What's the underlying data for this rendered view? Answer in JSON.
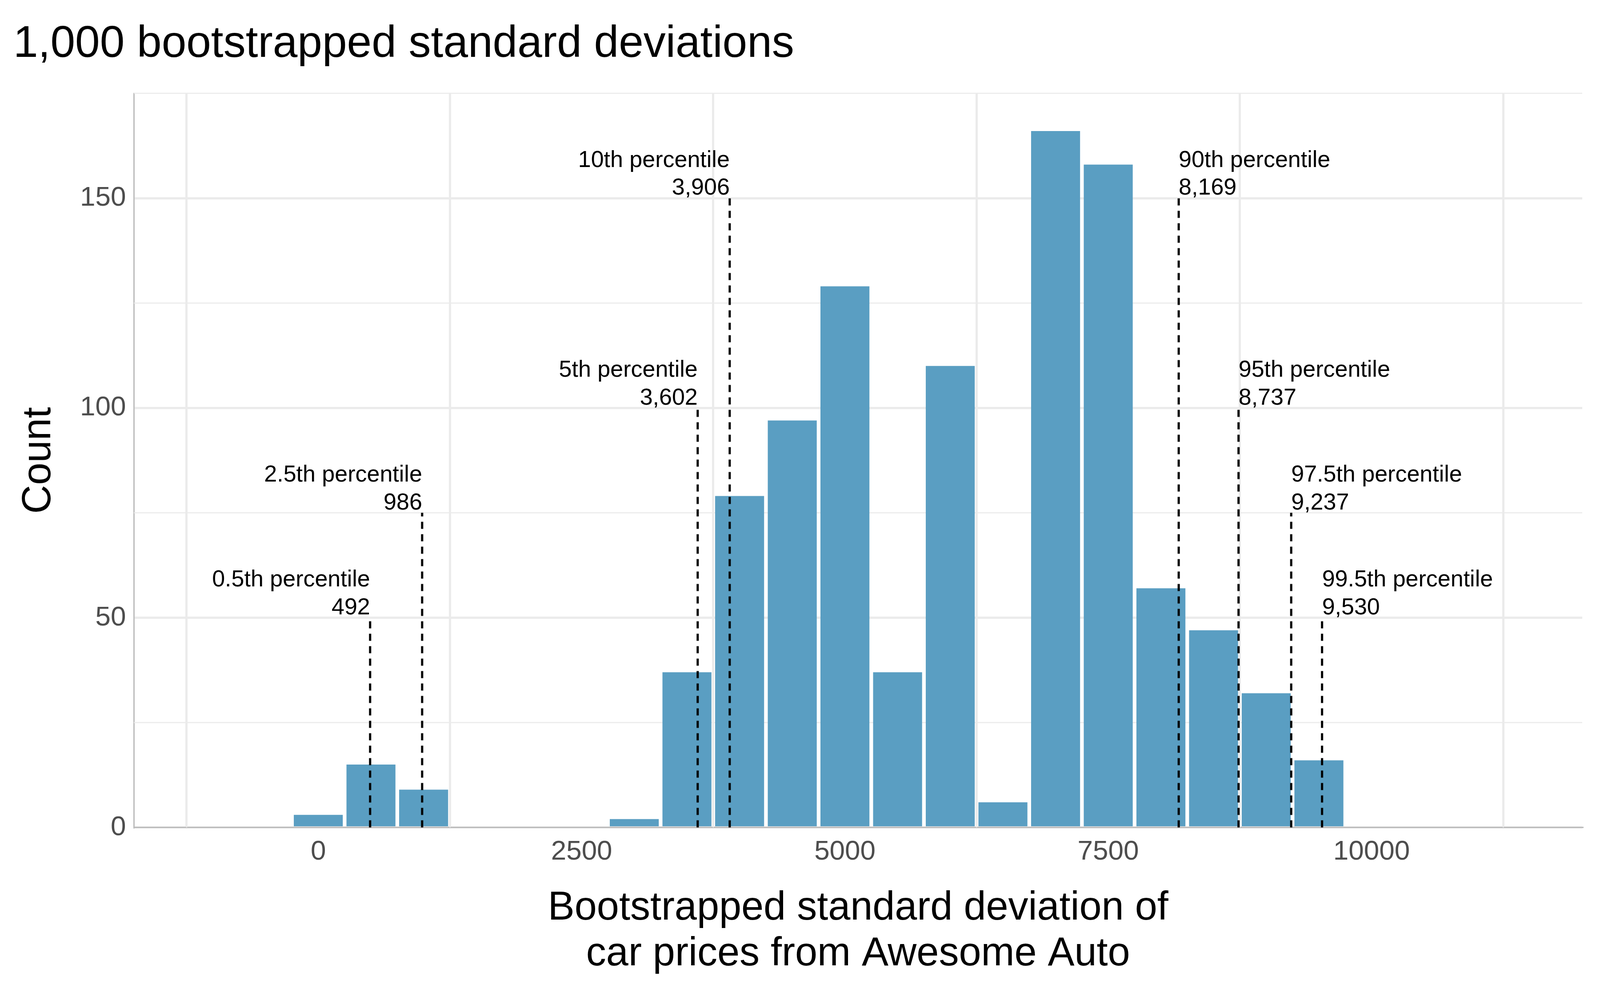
{
  "chart_data": {
    "type": "histogram",
    "title": "1,000 bootstrapped standard deviations",
    "x_label": [
      "Bootstrapped standard deviation of",
      "car prices from Awesome Auto"
    ],
    "y_label": "Count",
    "bins": [
      -250,
      250,
      750,
      1250,
      1750,
      2250,
      2750,
      3250,
      3750,
      4250,
      4750,
      5250,
      5750,
      6250,
      6750,
      7250,
      7750,
      8250,
      8750,
      9250,
      9750
    ],
    "counts": [
      3,
      15,
      9,
      0,
      0,
      0,
      2,
      37,
      79,
      97,
      129,
      37,
      110,
      6,
      166,
      158,
      57,
      47,
      32,
      16
    ],
    "color": "#5a9ec2",
    "xlim": [
      -1750,
      12000
    ],
    "xticks": [
      0,
      2500,
      5000,
      7500,
      10000
    ],
    "ylim": [
      0,
      175
    ],
    "yticks": [
      0,
      50,
      100,
      150
    ],
    "grid": true,
    "annotations": [
      {
        "label": "0.5th percentile",
        "value": 492,
        "height": 50
      },
      {
        "label": "2.5th percentile",
        "value": 986,
        "height": 75
      },
      {
        "label": "5th percentile",
        "value": 3602,
        "value_label": "3,602",
        "height": 100
      },
      {
        "label": "10th percentile",
        "value": 3906,
        "value_label": "3,906",
        "height": 150
      },
      {
        "label": "90th percentile",
        "value": 8169,
        "value_label": "8,169",
        "height": 150
      },
      {
        "label": "95th percentile",
        "value": 8737,
        "value_label": "8,737",
        "height": 100
      },
      {
        "label": "97.5th percentile",
        "value": 9237,
        "value_label": "9,237",
        "height": 75
      },
      {
        "label": "99.5th percentile",
        "value": 9530,
        "value_label": "9,530",
        "height": 50
      }
    ]
  }
}
